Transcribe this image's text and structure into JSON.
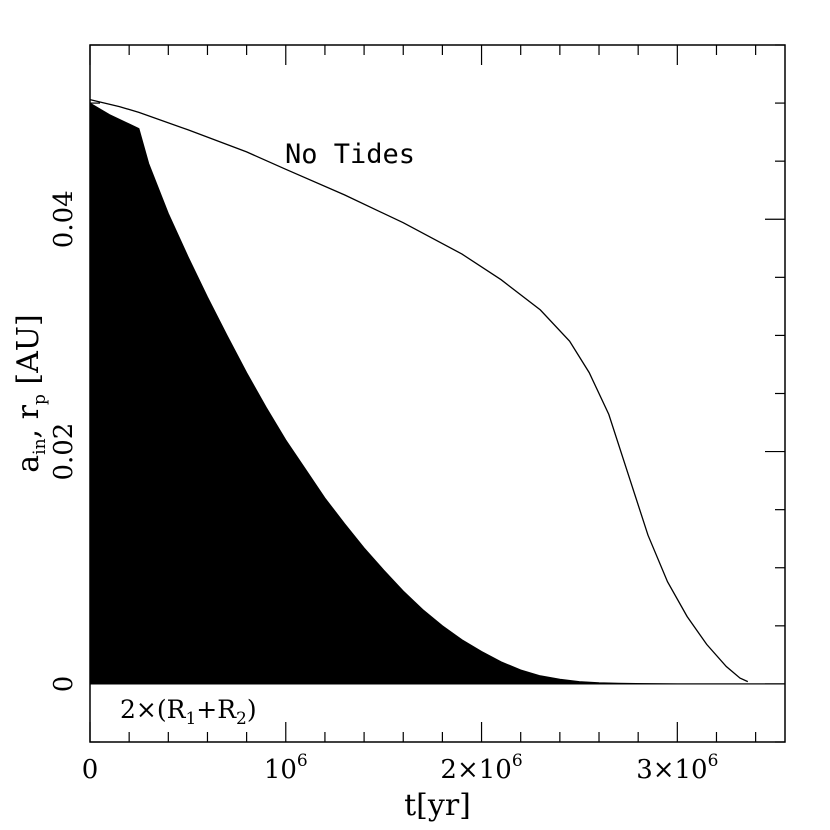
{
  "chart_data": {
    "type": "line",
    "xlabel": "t[yr]",
    "ylabel": {
      "a": "a",
      "a_sub": "in",
      "sep": ", r",
      "r_sub": "p",
      "unit": " [AU]"
    },
    "xlim": [
      0,
      3550000
    ],
    "ylim": [
      -0.005,
      0.055
    ],
    "x_ticks": [
      {
        "value": 0,
        "label": "0",
        "exp": ""
      },
      {
        "value": 1000000,
        "label": "10",
        "exp": "6"
      },
      {
        "value": 2000000,
        "label": "2×10",
        "exp": "6"
      },
      {
        "value": 3000000,
        "label": "3×10",
        "exp": "6"
      }
    ],
    "y_ticks": [
      {
        "value": 0,
        "label": "0"
      },
      {
        "value": 0.02,
        "label": "0.02"
      },
      {
        "value": 0.04,
        "label": "0.04"
      }
    ],
    "annotations": {
      "no_tides": "No Tides",
      "radius_label": {
        "pre": "2×(R",
        "s1": "1",
        "mid": "+R",
        "s2": "2",
        "post": ")"
      }
    },
    "series": [
      {
        "x": [
          0,
          150000,
          250000,
          500000,
          800000,
          1000000,
          1300000,
          1600000,
          1900000,
          2100000,
          2300000,
          2450000,
          2550000,
          2650000,
          2750000,
          2850000,
          2950000,
          3050000,
          3150000,
          3250000,
          3320000,
          3360000
        ],
        "y": [
          0.0503,
          0.0497,
          0.0492,
          0.0477,
          0.0458,
          0.0443,
          0.0421,
          0.0397,
          0.037,
          0.0348,
          0.0322,
          0.0295,
          0.0268,
          0.0232,
          0.018,
          0.0128,
          0.0088,
          0.0058,
          0.0034,
          0.0015,
          0.0005,
          0.0002
        ],
        "color": "#000000"
      },
      {
        "x": [
          0,
          100000,
          200000,
          250000,
          300000,
          400000,
          500000,
          600000,
          700000,
          800000,
          900000,
          1000000,
          1100000,
          1200000,
          1300000,
          1400000,
          1500000,
          1600000,
          1700000,
          1800000,
          1900000,
          2000000,
          2100000,
          2200000,
          2300000,
          2400000,
          2500000,
          2600000,
          2700000,
          3000000,
          3300000,
          3550000
        ],
        "y": [
          0.05,
          0.049,
          0.0482,
          0.0478,
          0.0448,
          0.0405,
          0.0368,
          0.0333,
          0.03,
          0.0268,
          0.0238,
          0.021,
          0.0185,
          0.016,
          0.0138,
          0.0117,
          0.0098,
          0.008,
          0.0064,
          0.005,
          0.0038,
          0.0028,
          0.0019,
          0.0012,
          0.0007,
          0.0004,
          0.0002,
          0.0001,
          5e-05,
          0.0,
          0.0,
          0.0
        ],
        "color": "#000000",
        "fill": true
      }
    ]
  }
}
